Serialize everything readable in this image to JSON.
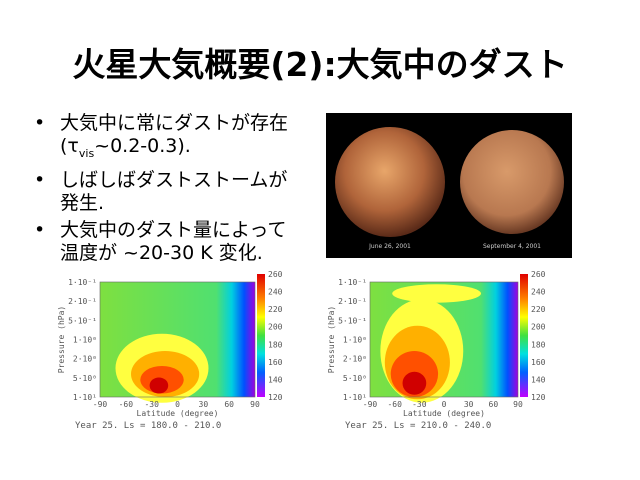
{
  "title": "火星大気概要(2):大気中のダスト",
  "bullets": [
    {
      "before": "大気中に常にダストが存在 (",
      "symbol": "τ",
      "sub": "vis",
      "after": "~0.2-0.3)."
    },
    {
      "text": "しばしばダストストームが発生."
    },
    {
      "text": "大気中のダスト量によって温度が ~20-30 K 変化."
    }
  ],
  "photo": {
    "captions": [
      "June 26, 2001",
      "September 4, 2001"
    ]
  },
  "plots": [
    {
      "y_label": "Pressure (hPa)",
      "x_label": "Latitude (degree)",
      "yticks": [
        "1·10⁻¹",
        "2·10⁻¹",
        "5·10⁻¹",
        "1·10⁰",
        "2·10⁰",
        "5·10⁰",
        "1·10¹"
      ],
      "xticks": [
        "-90",
        "-60",
        "-30",
        "0",
        "30",
        "60",
        "90"
      ],
      "colorbar": [
        "260",
        "240",
        "220",
        "200",
        "180",
        "160",
        "140",
        "120"
      ],
      "footer": "Year 25.   Ls = 180.0 - 210.0"
    },
    {
      "y_label": "Pressure (hPa)",
      "x_label": "Latitude (degree)",
      "yticks": [
        "1·10⁻¹",
        "2·10⁻¹",
        "5·10⁻¹",
        "1·10⁰",
        "2·10⁰",
        "5·10⁰",
        "1·10¹"
      ],
      "xticks": [
        "-90",
        "-60",
        "-30",
        "0",
        "30",
        "60",
        "90"
      ],
      "colorbar": [
        "260",
        "240",
        "220",
        "200",
        "180",
        "160",
        "140",
        "120"
      ],
      "footer": "Year 25.   Ls = 210.0 - 240.0"
    }
  ]
}
